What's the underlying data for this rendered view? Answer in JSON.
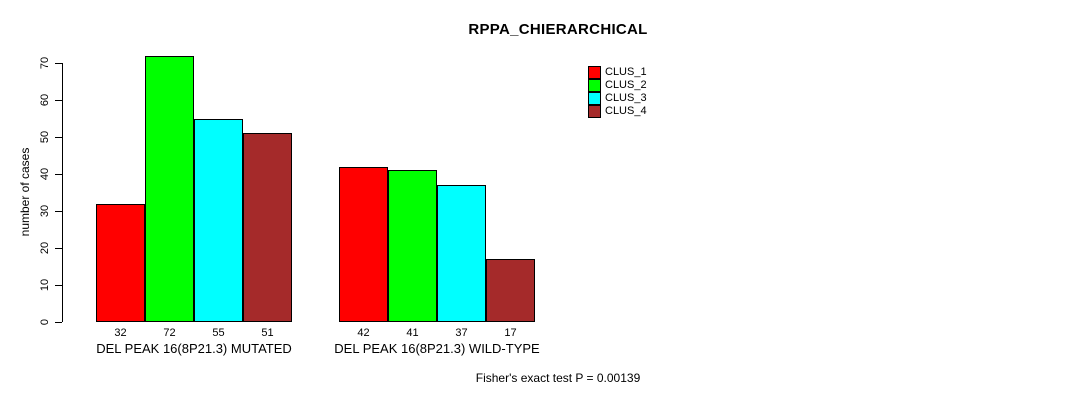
{
  "title": "RPPA_CHIERARCHICAL",
  "footer": "Fisher's exact test P = 0.00139",
  "y_axis": {
    "label": "number of cases",
    "ticks": [
      0,
      10,
      20,
      30,
      40,
      50,
      60,
      70
    ]
  },
  "chart_data": {
    "type": "bar",
    "title": "RPPA_CHIERARCHICAL",
    "xlabel": "",
    "ylabel": "number of cases",
    "ylim": [
      0,
      70
    ],
    "grid": false,
    "legend_position": "top-right",
    "categories": [
      "DEL PEAK 16(8P21.3) MUTATED",
      "DEL PEAK 16(8P21.3) WILD-TYPE"
    ],
    "series": [
      {
        "name": "CLUS_1",
        "color": "#ff0000",
        "values": [
          32,
          42
        ]
      },
      {
        "name": "CLUS_2",
        "color": "#00ff00",
        "values": [
          72,
          41
        ]
      },
      {
        "name": "CLUS_3",
        "color": "#00ffff",
        "values": [
          55,
          37
        ]
      },
      {
        "name": "CLUS_4",
        "color": "#a52a2a",
        "values": [
          51,
          17
        ]
      }
    ],
    "bar_value_labels": [
      [
        32,
        72,
        55,
        51
      ],
      [
        42,
        41,
        37,
        17
      ]
    ],
    "annotation": "Fisher's exact test P = 0.00139"
  }
}
